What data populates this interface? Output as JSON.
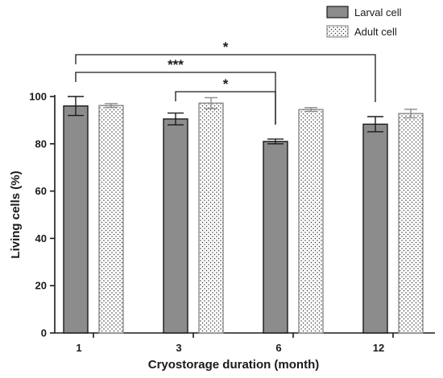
{
  "chart_data": {
    "type": "bar",
    "title": "",
    "xlabel": "Cryostorage duration (month)",
    "ylabel": "Living cells (%)",
    "categories": [
      "1",
      "3",
      "6",
      "12"
    ],
    "ylim": [
      0,
      100
    ],
    "yticks": [
      "0",
      "20",
      "40",
      "60",
      "80",
      "100"
    ],
    "series": [
      {
        "name": "Larval cell",
        "values": [
          96,
          90.5,
          81,
          88.3
        ],
        "errors": [
          4,
          2.5,
          1,
          3.2
        ],
        "color": "#8c8c8c",
        "pattern": "solid"
      },
      {
        "name": "Adult cell",
        "values": [
          96.2,
          97.2,
          94.5,
          92.8
        ],
        "errors": [
          0.8,
          2.3,
          0.8,
          1.8
        ],
        "color": "#ffffff",
        "pattern": "dots"
      }
    ],
    "legend": "top-right",
    "grid": false,
    "significance": [
      {
        "from": 0,
        "to": 3,
        "label": "*"
      },
      {
        "from": 0,
        "to": 2,
        "label": "***"
      },
      {
        "from": 1,
        "to": 2,
        "label": "*"
      }
    ]
  }
}
